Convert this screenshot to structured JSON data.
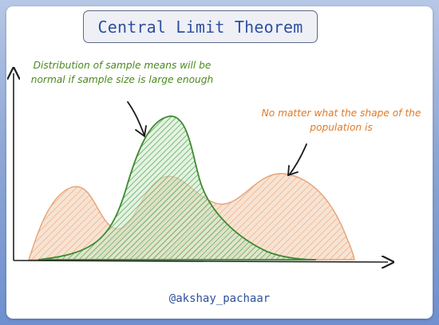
{
  "title": "Central Limit Theorem",
  "annotations": {
    "sample_means": "Distribution of sample means will be normal if sample size is large enough",
    "population": "No matter what the shape of the population is"
  },
  "credit": "@akshay_pachaar",
  "colors": {
    "title_text": "#2f4f9e",
    "green": "#4a8a1d",
    "orange": "#e07a25",
    "background_gradient": [
      "#b7c7e6",
      "#6f8fcf"
    ]
  }
}
